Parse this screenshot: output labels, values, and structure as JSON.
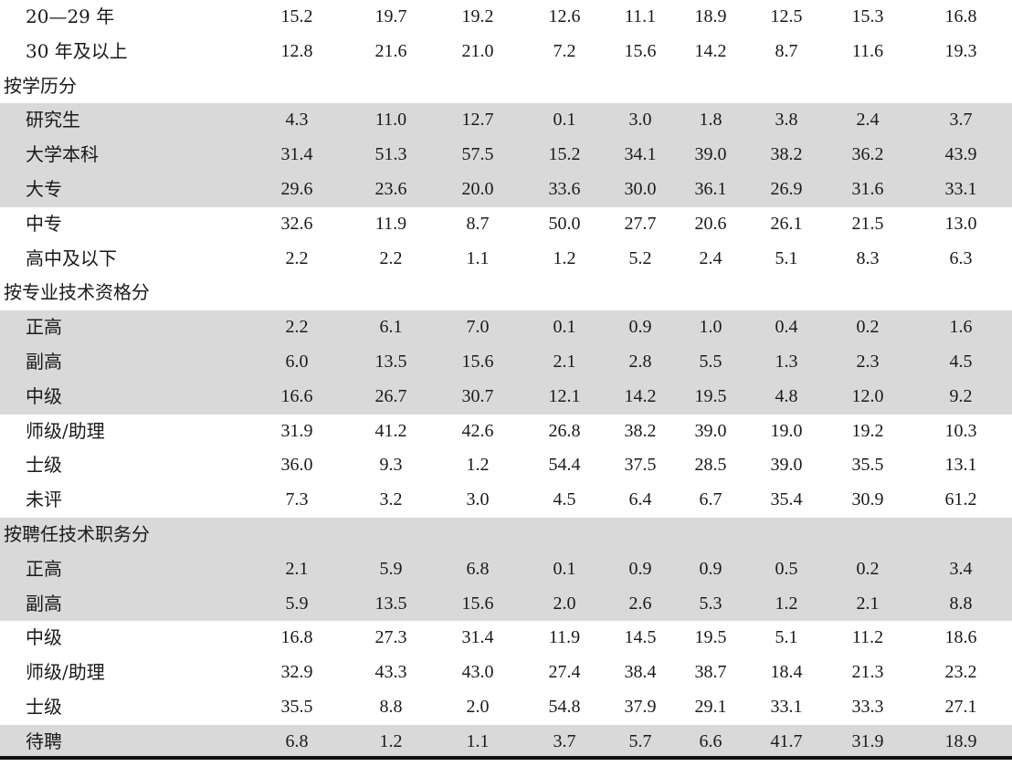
{
  "table": {
    "rows": [
      {
        "label": "20—29 年",
        "section": false,
        "shaded": false,
        "values": [
          "15.2",
          "19.7",
          "19.2",
          "12.6",
          "11.1",
          "18.9",
          "12.5",
          "15.3",
          "16.8"
        ]
      },
      {
        "label": "30 年及以上",
        "section": false,
        "shaded": false,
        "values": [
          "12.8",
          "21.6",
          "21.0",
          "7.2",
          "15.6",
          "14.2",
          "8.7",
          "11.6",
          "19.3"
        ]
      },
      {
        "label": "按学历分",
        "section": true,
        "shaded": false,
        "values": []
      },
      {
        "label": "研究生",
        "section": false,
        "shaded": true,
        "values": [
          "4.3",
          "11.0",
          "12.7",
          "0.1",
          "3.0",
          "1.8",
          "3.8",
          "2.4",
          "3.7"
        ]
      },
      {
        "label": "大学本科",
        "section": false,
        "shaded": true,
        "values": [
          "31.4",
          "51.3",
          "57.5",
          "15.2",
          "34.1",
          "39.0",
          "38.2",
          "36.2",
          "43.9"
        ]
      },
      {
        "label": "大专",
        "section": false,
        "shaded": true,
        "values": [
          "29.6",
          "23.6",
          "20.0",
          "33.6",
          "30.0",
          "36.1",
          "26.9",
          "31.6",
          "33.1"
        ]
      },
      {
        "label": "中专",
        "section": false,
        "shaded": false,
        "values": [
          "32.6",
          "11.9",
          "8.7",
          "50.0",
          "27.7",
          "20.6",
          "26.1",
          "21.5",
          "13.0"
        ]
      },
      {
        "label": "高中及以下",
        "section": false,
        "shaded": false,
        "values": [
          "2.2",
          "2.2",
          "1.1",
          "1.2",
          "5.2",
          "2.4",
          "5.1",
          "8.3",
          "6.3"
        ]
      },
      {
        "label": "按专业技术资格分",
        "section": true,
        "shaded": false,
        "values": []
      },
      {
        "label": "正高",
        "section": false,
        "shaded": true,
        "values": [
          "2.2",
          "6.1",
          "7.0",
          "0.1",
          "0.9",
          "1.0",
          "0.4",
          "0.2",
          "1.6"
        ]
      },
      {
        "label": "副高",
        "section": false,
        "shaded": true,
        "values": [
          "6.0",
          "13.5",
          "15.6",
          "2.1",
          "2.8",
          "5.5",
          "1.3",
          "2.3",
          "4.5"
        ]
      },
      {
        "label": "中级",
        "section": false,
        "shaded": true,
        "values": [
          "16.6",
          "26.7",
          "30.7",
          "12.1",
          "14.2",
          "19.5",
          "4.8",
          "12.0",
          "9.2"
        ]
      },
      {
        "label": "师级/助理",
        "section": false,
        "shaded": false,
        "values": [
          "31.9",
          "41.2",
          "42.6",
          "26.8",
          "38.2",
          "39.0",
          "19.0",
          "19.2",
          "10.3"
        ]
      },
      {
        "label": "士级",
        "section": false,
        "shaded": false,
        "values": [
          "36.0",
          "9.3",
          "1.2",
          "54.4",
          "37.5",
          "28.5",
          "39.0",
          "35.5",
          "13.1"
        ]
      },
      {
        "label": "未评",
        "section": false,
        "shaded": false,
        "values": [
          "7.3",
          "3.2",
          "3.0",
          "4.5",
          "6.4",
          "6.7",
          "35.4",
          "30.9",
          "61.2"
        ]
      },
      {
        "label": "按聘任技术职务分",
        "section": true,
        "shaded": true,
        "values": []
      },
      {
        "label": "正高",
        "section": false,
        "shaded": true,
        "values": [
          "2.1",
          "5.9",
          "6.8",
          "0.1",
          "0.9",
          "0.9",
          "0.5",
          "0.2",
          "3.4"
        ]
      },
      {
        "label": "副高",
        "section": false,
        "shaded": true,
        "values": [
          "5.9",
          "13.5",
          "15.6",
          "2.0",
          "2.6",
          "5.3",
          "1.2",
          "2.1",
          "8.8"
        ]
      },
      {
        "label": "中级",
        "section": false,
        "shaded": false,
        "values": [
          "16.8",
          "27.3",
          "31.4",
          "11.9",
          "14.5",
          "19.5",
          "5.1",
          "11.2",
          "18.6"
        ]
      },
      {
        "label": "师级/助理",
        "section": false,
        "shaded": false,
        "values": [
          "32.9",
          "43.3",
          "43.0",
          "27.4",
          "38.4",
          "38.7",
          "18.4",
          "21.3",
          "23.2"
        ]
      },
      {
        "label": "士级",
        "section": false,
        "shaded": false,
        "values": [
          "35.5",
          "8.8",
          "2.0",
          "54.8",
          "37.9",
          "29.1",
          "33.1",
          "33.3",
          "27.1"
        ]
      },
      {
        "label": "待聘",
        "section": false,
        "shaded": true,
        "values": [
          "6.8",
          "1.2",
          "1.1",
          "3.7",
          "5.7",
          "6.6",
          "41.7",
          "31.9",
          "18.9"
        ]
      }
    ]
  },
  "colors": {
    "shade": "#d9d9d9",
    "text": "#1a1a1a",
    "rule": "#111111"
  }
}
